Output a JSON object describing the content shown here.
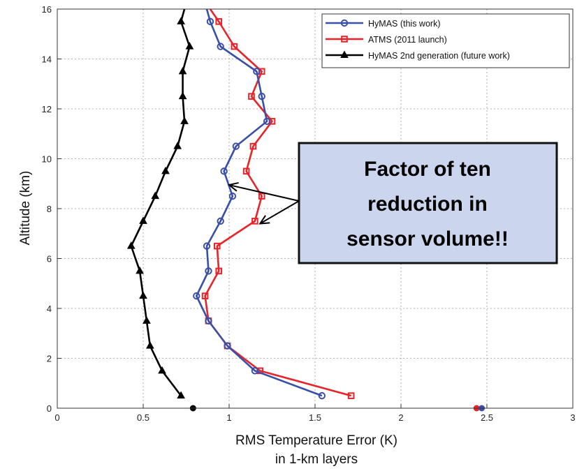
{
  "chart_data": {
    "type": "line",
    "title": "",
    "xlabel": "RMS Temperature Error (K)",
    "xlabel_line2": "in 1-km layers",
    "ylabel": "Altitude (km)",
    "xlim": [
      0,
      3
    ],
    "ylim": [
      0,
      16
    ],
    "xticks": [
      0,
      0.5,
      1,
      1.5,
      2,
      2.5,
      3
    ],
    "yticks": [
      0,
      2,
      4,
      6,
      8,
      10,
      12,
      14,
      16
    ],
    "grid": true,
    "legend_position": "top-right",
    "series": [
      {
        "name": "HyMAS (this work)",
        "color": "#3a4fa8",
        "marker": "circle",
        "points": [
          [
            1.54,
            0.5
          ],
          [
            1.15,
            1.5
          ],
          [
            0.99,
            2.5
          ],
          [
            0.88,
            3.5
          ],
          [
            0.81,
            4.5
          ],
          [
            0.88,
            5.5
          ],
          [
            0.87,
            6.5
          ],
          [
            0.95,
            7.5
          ],
          [
            1.02,
            8.5
          ],
          [
            0.97,
            9.5
          ],
          [
            1.04,
            10.5
          ],
          [
            1.22,
            11.5
          ],
          [
            1.19,
            12.5
          ],
          [
            1.16,
            13.5
          ],
          [
            0.95,
            14.5
          ],
          [
            0.89,
            15.5
          ],
          [
            0.87,
            16.0
          ]
        ],
        "surface_point": [
          2.47,
          0
        ]
      },
      {
        "name": "ATMS (2011 launch)",
        "color": "#e8232a",
        "marker": "square",
        "points": [
          [
            1.71,
            0.5
          ],
          [
            1.18,
            1.5
          ],
          [
            0.99,
            2.5
          ],
          [
            0.88,
            3.5
          ],
          [
            0.86,
            4.5
          ],
          [
            0.94,
            5.5
          ],
          [
            0.93,
            6.5
          ],
          [
            1.15,
            7.5
          ],
          [
            1.19,
            8.5
          ],
          [
            1.1,
            9.5
          ],
          [
            1.14,
            10.5
          ],
          [
            1.25,
            11.5
          ],
          [
            1.13,
            12.5
          ],
          [
            1.19,
            13.5
          ],
          [
            1.03,
            14.5
          ],
          [
            0.94,
            15.5
          ],
          [
            0.89,
            16.0
          ]
        ],
        "surface_point": [
          2.44,
          0
        ]
      },
      {
        "name": "HyMAS 2nd generation (future work)",
        "color": "#000000",
        "marker": "triangle",
        "points": [
          [
            0.72,
            0.5
          ],
          [
            0.61,
            1.5
          ],
          [
            0.54,
            2.5
          ],
          [
            0.52,
            3.5
          ],
          [
            0.5,
            4.5
          ],
          [
            0.48,
            5.5
          ],
          [
            0.43,
            6.5
          ],
          [
            0.5,
            7.5
          ],
          [
            0.57,
            8.5
          ],
          [
            0.63,
            9.5
          ],
          [
            0.7,
            10.5
          ],
          [
            0.74,
            11.5
          ],
          [
            0.73,
            12.5
          ],
          [
            0.73,
            13.5
          ],
          [
            0.77,
            14.5
          ],
          [
            0.72,
            15.5
          ],
          [
            0.74,
            16.0
          ]
        ],
        "surface_point": [
          0.79,
          0
        ]
      }
    ],
    "annotation": {
      "text_lines": [
        "Factor of ten",
        "reduction in",
        "sensor volume!!"
      ],
      "box_fill": "#ccd5ee",
      "box_stroke": "#111111",
      "arrows_to": [
        [
          1.0,
          8.95
        ],
        [
          1.18,
          7.4
        ]
      ]
    }
  }
}
